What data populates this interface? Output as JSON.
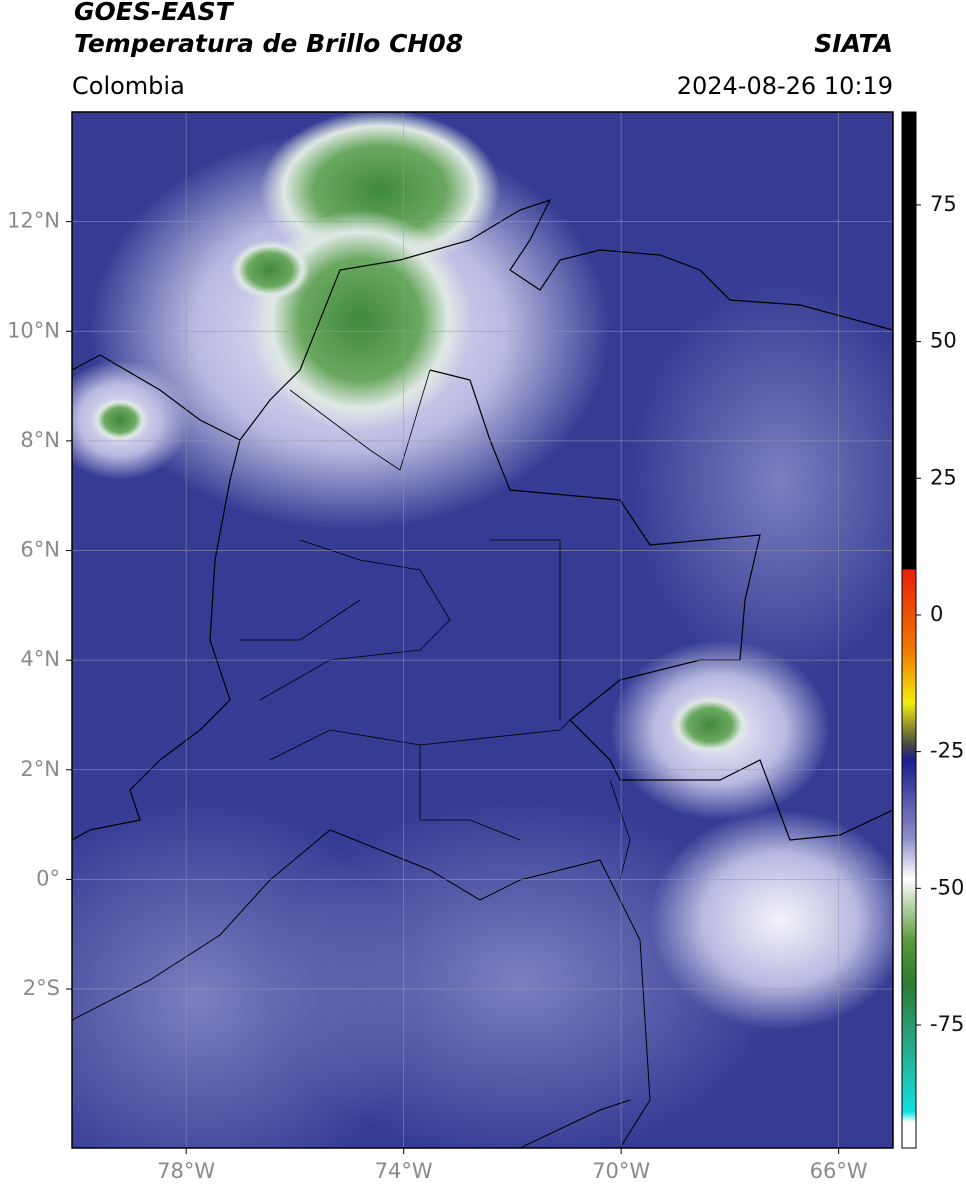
{
  "header": {
    "title": "GOES-EAST",
    "subtitle": "Temperatura de Brillo CH08",
    "source": "SIATA",
    "region": "Colombia",
    "datetime": "2024-08-26 10:19"
  },
  "map": {
    "lonlim": [
      -80.1,
      -65
    ],
    "latlim": [
      -4.9,
      14
    ],
    "lon_ticks": [
      {
        "value": -78,
        "label": "78°W"
      },
      {
        "value": -74,
        "label": "74°W"
      },
      {
        "value": -70,
        "label": "70°W"
      },
      {
        "value": -66,
        "label": "66°W"
      }
    ],
    "lat_ticks": [
      {
        "value": 12,
        "label": "12°N"
      },
      {
        "value": 10,
        "label": "10°N"
      },
      {
        "value": 8,
        "label": "8°N"
      },
      {
        "value": 6,
        "label": "6°N"
      },
      {
        "value": 4,
        "label": "4°N"
      },
      {
        "value": 2,
        "label": "2°N"
      },
      {
        "value": 0,
        "label": "0°"
      },
      {
        "value": -2,
        "label": "2°S"
      }
    ]
  },
  "colorbar": {
    "lim": [
      -97.5,
      92
    ],
    "ticks": [
      75,
      50,
      25,
      0,
      -25,
      -50,
      -75
    ]
  }
}
